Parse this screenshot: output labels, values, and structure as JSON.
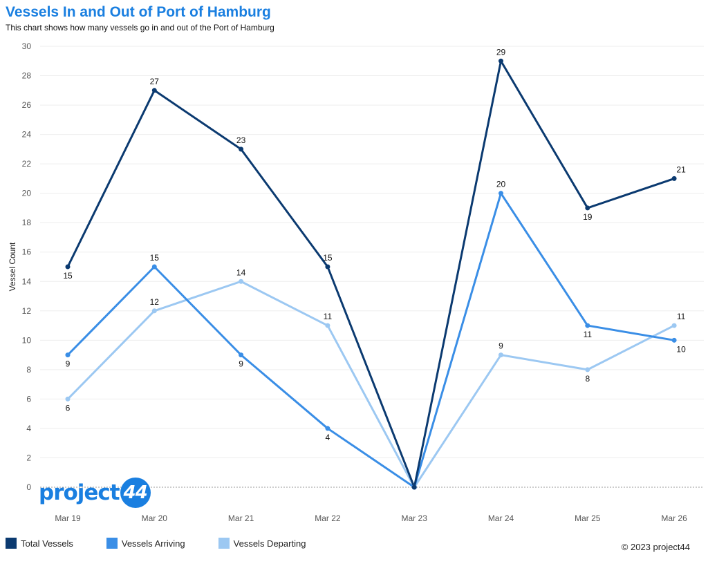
{
  "header": {
    "title": "Vessels In and Out of Port of Hamburg",
    "subtitle": "This chart shows how many vessels go in and out of the Port of Hamburg"
  },
  "logo": {
    "text": "project",
    "badge": "44"
  },
  "footer": {
    "copyright": "© 2023 project44"
  },
  "chart_data": {
    "type": "line",
    "ylabel": "Vessel Count",
    "xlabel": "",
    "ylim": [
      0,
      30
    ],
    "yticks": [
      0,
      2,
      4,
      6,
      8,
      10,
      12,
      14,
      16,
      18,
      20,
      22,
      24,
      26,
      28,
      30
    ],
    "categories": [
      "Mar 19",
      "Mar 20",
      "Mar 21",
      "Mar 22",
      "Mar 23",
      "Mar 24",
      "Mar 25",
      "Mar 26"
    ],
    "grid": true,
    "legend_position": "bottom-left",
    "series": [
      {
        "name": "Total Vessels",
        "color": "#0b3a70",
        "values": [
          15,
          27,
          23,
          15,
          0,
          29,
          19,
          21
        ]
      },
      {
        "name": "Vessels Arriving",
        "color": "#3a8ee6",
        "values": [
          9,
          15,
          9,
          4,
          0,
          20,
          11,
          10
        ]
      },
      {
        "name": "Vessels Departing",
        "color": "#9cc8f2",
        "values": [
          6,
          12,
          14,
          11,
          0,
          9,
          8,
          11
        ]
      }
    ]
  }
}
